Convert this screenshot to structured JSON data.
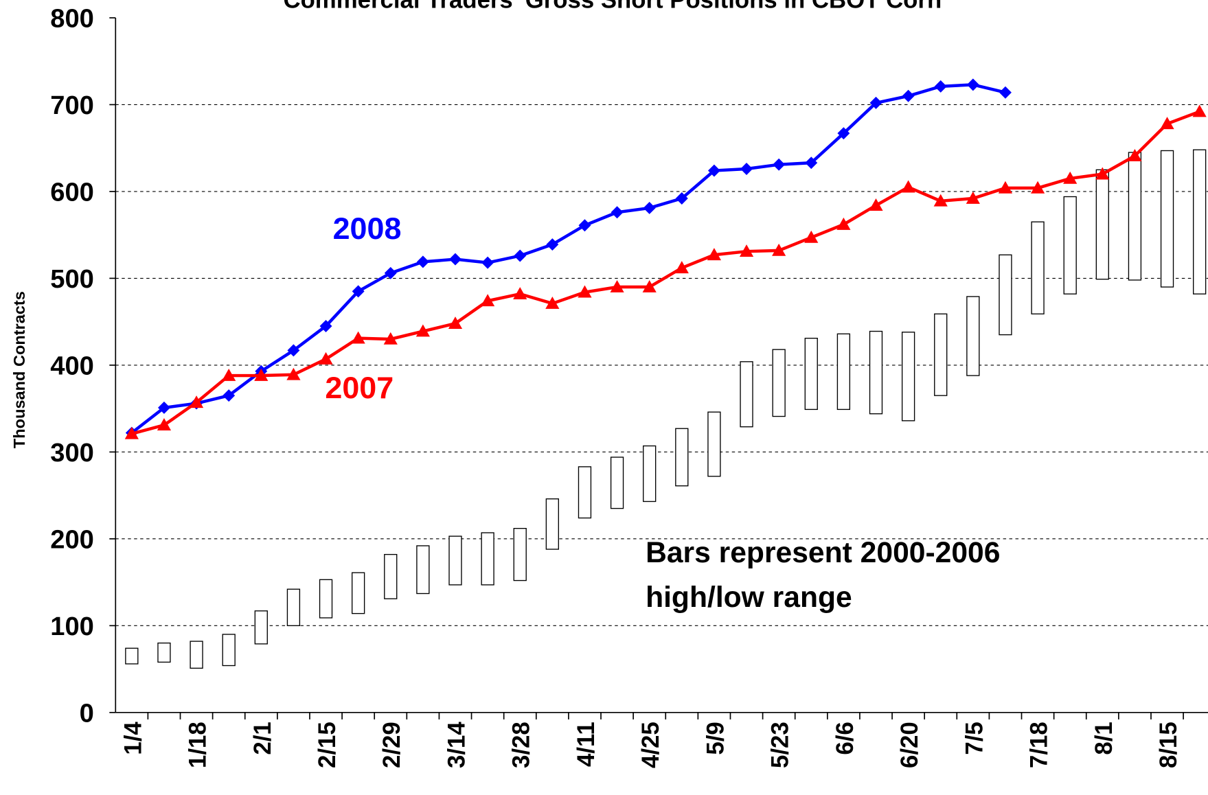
{
  "chart_data": {
    "type": "line",
    "title": "Commercial Traders' Gross Short Positions in CBOT Corn",
    "y_label": "Thousand Contracts",
    "annotation": [
      "Bars represent 2000-2006",
      "high/low range"
    ],
    "categories": [
      "1/4",
      null,
      "1/18",
      null,
      "2/1",
      null,
      "2/15",
      null,
      "2/29",
      null,
      "3/14",
      null,
      "3/28",
      null,
      "4/11",
      null,
      "4/25",
      null,
      "5/9",
      null,
      "5/23",
      null,
      "6/6",
      null,
      "6/20",
      null,
      "7/5",
      null,
      "7/18",
      null,
      "8/1",
      null,
      "8/15",
      null
    ],
    "series": [
      {
        "name": "2008",
        "color": "#0000ff",
        "marker": "diamond",
        "values": [
          322,
          351,
          356,
          365,
          393,
          417,
          445,
          485,
          506,
          519,
          522,
          518,
          526,
          539,
          561,
          576,
          581,
          592,
          624,
          626,
          631,
          633,
          667,
          702,
          710,
          721,
          723,
          714,
          null,
          null,
          null,
          null,
          null,
          null
        ]
      },
      {
        "name": "2007",
        "color": "#ff0000",
        "marker": "triangle",
        "values": [
          321,
          331,
          357,
          388,
          388,
          389,
          407,
          431,
          430,
          439,
          448,
          474,
          482,
          471,
          484,
          490,
          490,
          512,
          527,
          531,
          532,
          547,
          562,
          584,
          605,
          589,
          592,
          604,
          604,
          615,
          620,
          641,
          678,
          692
        ]
      }
    ],
    "range": {
      "high": [
        74,
        80,
        82,
        90,
        117,
        142,
        153,
        161,
        182,
        192,
        203,
        207,
        212,
        246,
        283,
        294,
        307,
        327,
        346,
        404,
        418,
        431,
        436,
        439,
        438,
        459,
        479,
        527,
        565,
        594,
        625,
        645,
        647,
        648
      ],
      "low": [
        56,
        58,
        51,
        54,
        79,
        100,
        109,
        114,
        131,
        137,
        147,
        147,
        152,
        188,
        224,
        235,
        243,
        261,
        272,
        329,
        341,
        349,
        349,
        344,
        336,
        365,
        388,
        435,
        459,
        482,
        499,
        498,
        490,
        482
      ]
    },
    "ylim": [
      0,
      800
    ],
    "yticks": [
      0,
      100,
      200,
      300,
      400,
      500,
      600,
      700,
      800
    ],
    "grid": true
  }
}
